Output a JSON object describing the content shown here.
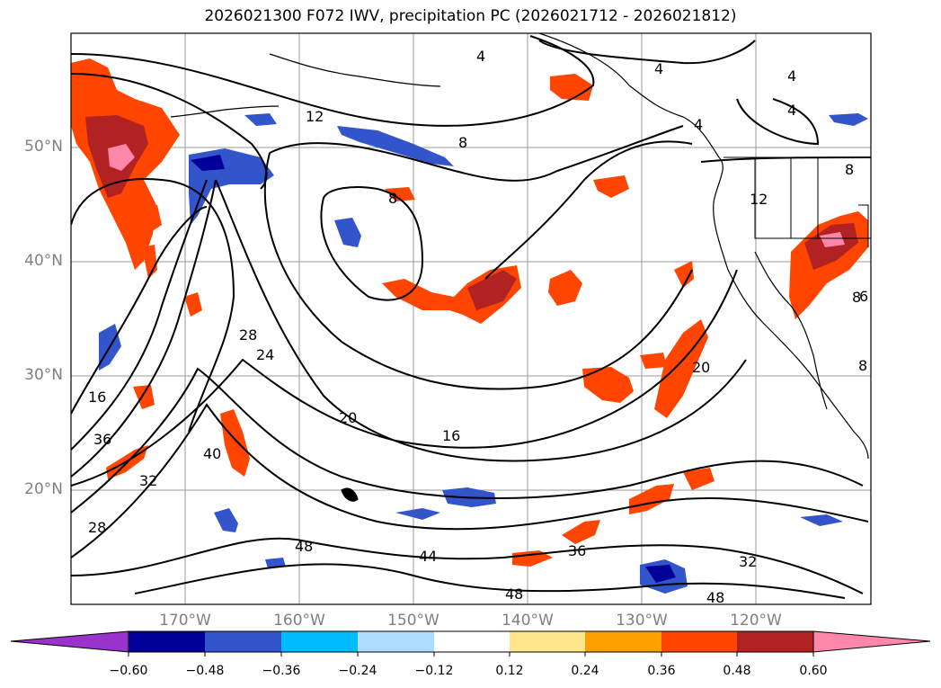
{
  "title": "2026021300 F072 IWV, precipitation PC (2026021712 - 2026021812)",
  "map": {
    "projection": "PlateCarree",
    "extent_lon": [
      -180,
      -110
    ],
    "extent_lat": [
      10,
      60
    ],
    "lat_labels": [
      "50°N",
      "40°N",
      "30°N",
      "20°N"
    ],
    "lon_labels": [
      "170°W",
      "160°W",
      "150°W",
      "140°W",
      "130°W",
      "120°W"
    ],
    "contour_labels": [
      "4",
      "4",
      "4",
      "4",
      "4",
      "12",
      "8",
      "8",
      "12",
      "8",
      "8",
      "20",
      "24",
      "28",
      "16",
      "36",
      "40",
      "32",
      "28",
      "20",
      "16",
      "48",
      "44",
      "36",
      "32",
      "48",
      "48",
      "6",
      "8"
    ],
    "colors": {
      "land_outline": "#000000",
      "grid": "#9a9a9a",
      "contour": "#000000"
    }
  },
  "colorbar": {
    "ticks": [
      "−0.60",
      "−0.48",
      "−0.36",
      "−0.24",
      "−0.12",
      "0.12",
      "0.24",
      "0.36",
      "0.48",
      "0.60"
    ],
    "colors": [
      "#9933cc",
      "#000099",
      "#3355cc",
      "#00bbff",
      "#aaddff",
      "#ffffff",
      "#ffe68a",
      "#ffa000",
      "#ff4500",
      "#b22222",
      "#ff88aa"
    ]
  }
}
